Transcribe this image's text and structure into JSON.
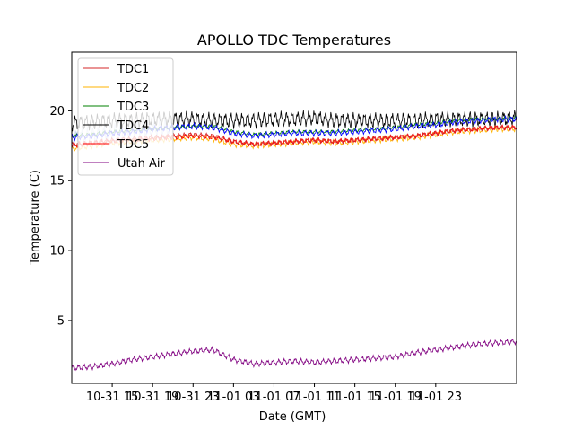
{
  "chart_data": {
    "type": "line",
    "title": "APOLLO TDC Temperatures",
    "xlabel": "Date (GMT)",
    "ylabel": "Temperature (C)",
    "xlim_hours": [
      0,
      44
    ],
    "ylim": [
      0.5,
      24.2
    ],
    "x_ticks": [
      {
        "hour": 4,
        "label": "10-31 15"
      },
      {
        "hour": 8,
        "label": "10-31 19"
      },
      {
        "hour": 12,
        "label": "10-31 23"
      },
      {
        "hour": 16,
        "label": "11-01 03"
      },
      {
        "hour": 20,
        "label": "11-01 07"
      },
      {
        "hour": 24,
        "label": "11-01 11"
      },
      {
        "hour": 28,
        "label": "11-01 15"
      },
      {
        "hour": 32,
        "label": "11-01 19"
      },
      {
        "hour": 36,
        "label": "11-01 23"
      }
    ],
    "y_ticks": [
      5,
      10,
      15,
      20
    ],
    "legend_position": "upper left",
    "x_hours": [
      0,
      2,
      4,
      6,
      8,
      10,
      12,
      14,
      16,
      18,
      20,
      22,
      24,
      26,
      28,
      30,
      32,
      34,
      36,
      38,
      40,
      42,
      44
    ],
    "series": [
      {
        "name": "TDC1",
        "color": "#d62728",
        "oscillation": 0.12,
        "values": [
          17.6,
          17.7,
          17.9,
          18.0,
          18.1,
          18.2,
          18.3,
          18.2,
          17.8,
          17.6,
          17.7,
          17.8,
          17.9,
          17.8,
          17.9,
          18.0,
          18.1,
          18.2,
          18.4,
          18.6,
          18.7,
          18.8,
          18.8
        ]
      },
      {
        "name": "TDC2",
        "color": "#ffb300",
        "oscillation": 0.15,
        "values": [
          17.3,
          17.5,
          17.7,
          17.8,
          17.9,
          18.0,
          18.1,
          18.0,
          17.6,
          17.5,
          17.6,
          17.7,
          17.8,
          17.7,
          17.8,
          17.9,
          18.0,
          18.1,
          18.3,
          18.5,
          18.6,
          18.7,
          18.7
        ]
      },
      {
        "name": "TDC3",
        "color": "#008000",
        "oscillation": 0.1,
        "values": [
          18.2,
          18.3,
          18.5,
          18.6,
          18.7,
          18.8,
          18.9,
          18.9,
          18.5,
          18.3,
          18.4,
          18.5,
          18.5,
          18.5,
          18.6,
          18.7,
          18.8,
          19.0,
          19.1,
          19.3,
          19.4,
          19.4,
          19.5
        ]
      },
      {
        "name": "TDC4",
        "color": "#000000",
        "oscillation": 0.4,
        "values": [
          19.1,
          19.2,
          19.3,
          19.3,
          19.4,
          19.4,
          19.4,
          19.3,
          19.3,
          19.3,
          19.4,
          19.4,
          19.5,
          19.3,
          19.3,
          19.3,
          19.3,
          19.3,
          19.4,
          19.4,
          19.4,
          19.4,
          19.5
        ]
      },
      {
        "name": "TDC5",
        "color": "#ff0000",
        "oscillation": 0.12,
        "values": [
          17.5,
          17.7,
          17.8,
          17.9,
          18.0,
          18.1,
          18.2,
          18.1,
          17.8,
          17.6,
          17.7,
          17.8,
          17.9,
          17.8,
          17.9,
          18.0,
          18.1,
          18.2,
          18.4,
          18.6,
          18.7,
          18.8,
          18.8
        ]
      },
      {
        "name": "Utah Air",
        "color": "#800080",
        "oscillation": 0.15,
        "values": [
          1.6,
          1.7,
          1.9,
          2.2,
          2.4,
          2.6,
          2.8,
          2.9,
          2.2,
          1.9,
          2.0,
          2.1,
          2.0,
          2.1,
          2.2,
          2.3,
          2.4,
          2.7,
          2.9,
          3.1,
          3.3,
          3.4,
          3.5
        ]
      },
      {
        "name": "",
        "color": "#0000ff",
        "oscillation": 0.15,
        "values": [
          18.1,
          18.2,
          18.4,
          18.5,
          18.7,
          18.8,
          18.9,
          18.8,
          18.4,
          18.2,
          18.3,
          18.4,
          18.4,
          18.4,
          18.5,
          18.6,
          18.7,
          18.9,
          19.0,
          19.2,
          19.3,
          19.4,
          19.4
        ]
      },
      {
        "name": "",
        "color": "#c8d4f0",
        "oscillation": 0.5,
        "values": [
          18.0,
          18.2,
          18.4,
          18.6,
          18.7,
          18.8,
          18.9,
          18.9,
          18.9,
          18.9,
          18.9,
          18.9,
          18.9,
          18.9,
          18.9,
          18.9,
          18.9,
          18.9,
          18.9,
          18.9,
          18.9,
          18.9,
          18.9
        ],
        "visible_until_hour": 10
      }
    ]
  }
}
